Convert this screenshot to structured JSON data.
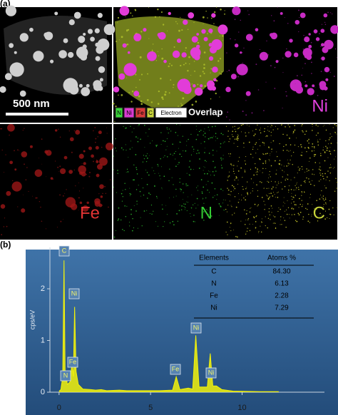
{
  "panel_a": {
    "label": "(a)",
    "scale_bar": "500 nm",
    "overlay_legend": [
      "N",
      "Ni",
      "Fe",
      "C",
      "Electron"
    ],
    "overlay_title": "Overlap",
    "maps": [
      "Ni",
      "Fe",
      "N",
      "C"
    ]
  },
  "panel_b": {
    "label": "(b)",
    "table": {
      "header": [
        "Elements",
        "Atoms %"
      ],
      "rows": [
        [
          "C",
          "84.30"
        ],
        [
          "N",
          "6.13"
        ],
        [
          "Fe",
          "2.28"
        ],
        [
          "Ni",
          "7.29"
        ]
      ]
    }
  },
  "chart_data": {
    "type": "area",
    "ylabel": "cps/eV",
    "color": "#f2f20a",
    "x": [
      0,
      0.1,
      0.2,
      0.27,
      0.33,
      0.39,
      0.45,
      0.6,
      0.7,
      0.78,
      0.85,
      0.93,
      1.05,
      1.3,
      1.74,
      2,
      2.3,
      2.6,
      3.3,
      3.7,
      4.5,
      5.5,
      6.2,
      6.4,
      6.6,
      7.06,
      7.3,
      7.47,
      7.65,
      8.1,
      8.26,
      8.4,
      8.6,
      8.9,
      9.5,
      11,
      12
    ],
    "values": [
      0.02,
      0.05,
      0.3,
      2.55,
      0.4,
      0.35,
      0.15,
      0.2,
      0.55,
      0.3,
      1.65,
      0.4,
      0.15,
      0.06,
      0.05,
      0.04,
      0.05,
      0.03,
      0.04,
      0.03,
      0.03,
      0.03,
      0.04,
      0.3,
      0.05,
      0.08,
      0.06,
      1.1,
      0.1,
      0.1,
      0.75,
      0.12,
      0.12,
      0.05,
      0.02,
      0.01,
      0.01
    ],
    "xlim": [
      -0.5,
      14.5
    ],
    "ylim": [
      0,
      2.8
    ],
    "xticks": [
      0,
      5,
      10
    ],
    "yticks": [
      0,
      1,
      2
    ],
    "annotations": [
      "C",
      "Ni",
      "N",
      "Fe",
      "Fe",
      "Ni",
      "Ni"
    ]
  }
}
